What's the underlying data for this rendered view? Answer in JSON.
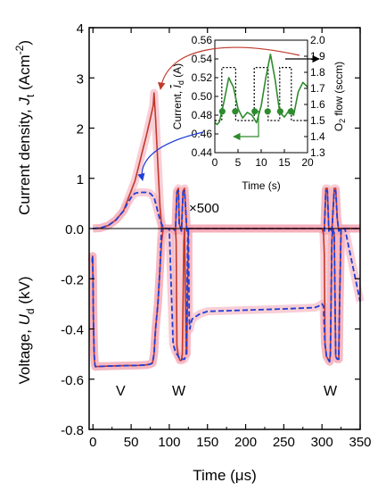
{
  "chart_data": [
    {
      "type": "line",
      "panel": "top",
      "ylabel": "Current density, J_t (Acm^-2)",
      "ylabel_parts": {
        "main": "Current density, ",
        "sym": "J",
        "sub": "t",
        "unit": " (Acm",
        "sup": "-2",
        "close": ")"
      },
      "xlim": [
        -5,
        350
      ],
      "ylim": [
        0,
        4
      ],
      "yticks": [
        "0.0",
        "1",
        "2",
        "3",
        "4"
      ],
      "annotation": "×500",
      "colors": {
        "solid": "#c0392b",
        "dashed": "#1f3fd6",
        "highlight": "#f4a6b4",
        "dots": "#2e8b2e"
      },
      "series": [
        {
          "style": "solid",
          "x": [
            0,
            10,
            20,
            30,
            40,
            45,
            50,
            55,
            60,
            65,
            70,
            73,
            76,
            79,
            80,
            82,
            84,
            86,
            88,
            90,
            95,
            100,
            105,
            108,
            110,
            112,
            113,
            116,
            118,
            120,
            123,
            125,
            130,
            150,
            200,
            250,
            300,
            303,
            305,
            307,
            309,
            311,
            313,
            316,
            318,
            320,
            322,
            325,
            330,
            350
          ],
          "y": [
            0,
            0.01,
            0.06,
            0.17,
            0.35,
            0.55,
            0.75,
            0.95,
            1.25,
            1.55,
            1.85,
            2.05,
            2.25,
            2.45,
            2.7,
            2.2,
            1.6,
            1.0,
            0.4,
            0.02,
            0,
            0,
            0,
            -0.05,
            0.75,
            0.8,
            0.1,
            -0.05,
            0.75,
            0.8,
            -0.05,
            0,
            0,
            0,
            0,
            0,
            0,
            -0.05,
            0.8,
            0.8,
            -0.05,
            0,
            -0.05,
            0.8,
            0.8,
            0.2,
            -0.05,
            0,
            0,
            0
          ]
        },
        {
          "style": "dashed",
          "x": [
            0,
            10,
            20,
            30,
            40,
            45,
            50,
            55,
            60,
            65,
            70,
            75,
            80,
            83,
            86,
            89,
            92,
            95,
            100,
            105,
            108,
            110,
            112,
            113,
            116,
            118,
            120,
            123,
            125,
            130,
            150,
            200,
            250,
            300,
            303,
            305,
            307,
            309,
            311,
            313,
            316,
            318,
            320,
            322,
            325,
            330,
            350
          ],
          "y": [
            0,
            0.01,
            0.06,
            0.17,
            0.35,
            0.5,
            0.62,
            0.7,
            0.72,
            0.72,
            0.72,
            0.7,
            0.62,
            0.45,
            0.28,
            0.12,
            0.03,
            0,
            0,
            0,
            -0.05,
            0.72,
            0.75,
            0.1,
            -0.05,
            0.72,
            0.75,
            -0.05,
            0,
            0,
            0,
            0,
            0,
            0,
            -0.05,
            0.75,
            0.75,
            -0.05,
            0,
            -0.05,
            0.75,
            0.75,
            0.2,
            -0.05,
            0,
            0,
            0
          ]
        }
      ]
    },
    {
      "type": "line",
      "panel": "bottom",
      "xlabel": "Time (μs)",
      "ylabel": "Voltage, U_d (kV)",
      "ylabel_parts": {
        "main": "Voltage, ",
        "sym": "U",
        "sub": "d",
        "unit": " (kV)"
      },
      "xlim": [
        -5,
        350
      ],
      "ylim": [
        -0.8,
        0
      ],
      "xticks": [
        "0",
        "50",
        "100",
        "150",
        "200",
        "250",
        "300",
        "350"
      ],
      "yticks": [
        "-0.8",
        "-0.6",
        "-0.4",
        "-0.2",
        "0.0"
      ],
      "annotations": [
        {
          "text": "V",
          "x": 37
        },
        {
          "text": "W",
          "x": 98
        },
        {
          "text": "W",
          "x": 294
        }
      ],
      "series": [
        {
          "style": "solid",
          "x": [
            -2,
            -1,
            -0.5,
            0,
            0.5,
            1.5,
            2.5,
            3,
            10,
            20,
            40,
            60,
            70,
            75,
            78,
            80,
            82,
            85,
            88,
            90,
            92,
            95,
            100,
            108,
            109,
            110,
            112,
            114,
            116,
            117,
            118,
            119,
            120,
            122,
            123,
            125,
            130,
            150,
            200,
            250,
            300,
            302,
            303,
            304,
            306,
            308,
            310,
            311,
            313,
            314,
            316,
            318,
            320,
            322,
            323,
            325,
            330,
            350
          ],
          "y": [
            -0.13,
            -0.13,
            -0.11,
            -0.2,
            -0.35,
            -0.5,
            -0.54,
            -0.55,
            -0.549,
            -0.548,
            -0.546,
            -0.545,
            -0.543,
            -0.54,
            -0.535,
            -0.5,
            -0.4,
            -0.3,
            -0.15,
            -0.05,
            0,
            0,
            0,
            0,
            -0.05,
            -0.47,
            -0.51,
            -0.525,
            -0.525,
            -0.5,
            -0.3,
            -0.05,
            0,
            -0.47,
            -0.5,
            0,
            0,
            0,
            0,
            0,
            0,
            -0.02,
            -0.1,
            -0.46,
            -0.51,
            -0.52,
            -0.53,
            -0.5,
            -0.05,
            0,
            -0.02,
            -0.51,
            -0.52,
            -0.52,
            -0.3,
            0,
            0,
            0
          ]
        },
        {
          "style": "dashed",
          "x": [
            -2,
            -1,
            -0.5,
            0,
            0.5,
            1.5,
            2.5,
            3,
            10,
            20,
            40,
            60,
            70,
            75,
            78,
            80,
            82,
            85,
            88,
            89,
            90,
            92,
            95,
            100,
            105,
            108,
            110,
            112,
            114,
            116,
            118,
            120,
            122,
            123,
            124,
            125,
            126,
            127,
            128,
            130,
            140,
            150,
            200,
            250,
            290,
            295,
            300,
            302,
            303,
            304,
            306,
            308,
            310,
            311,
            313,
            314,
            316,
            318,
            320,
            322,
            323,
            325,
            330,
            350
          ],
          "y": [
            -0.13,
            -0.13,
            -0.11,
            -0.2,
            -0.35,
            -0.5,
            -0.54,
            -0.55,
            -0.549,
            -0.548,
            -0.546,
            -0.545,
            -0.543,
            -0.54,
            -0.535,
            -0.5,
            -0.4,
            -0.3,
            -0.15,
            -0.05,
            0,
            0,
            0,
            0,
            -0.46,
            -0.49,
            -0.5,
            -0.51,
            -0.52,
            -0.52,
            -0.52,
            -0.52,
            -0.5,
            -0.3,
            -0.05,
            0,
            -0.35,
            -0.4,
            -0.38,
            -0.36,
            -0.34,
            -0.33,
            -0.325,
            -0.32,
            -0.315,
            -0.31,
            -0.3,
            -0.31,
            -0.4,
            -0.46,
            -0.51,
            -0.52,
            -0.53,
            -0.5,
            -0.05,
            0,
            -0.02,
            -0.51,
            -0.52,
            -0.52,
            -0.3,
            0,
            0,
            -0.29
          ]
        }
      ]
    },
    {
      "type": "line",
      "panel": "inset",
      "xlabel": "Time (s)",
      "ylabel": "Current, Ī_d (A)",
      "ylabel_parts": {
        "main": "Current, ",
        "sym": "I",
        "sub": "d",
        "unit": " (A)"
      },
      "y2label": "O2 flow (sccm)",
      "y2label_parts": {
        "main": "O",
        "sub": "2",
        "rest": " flow (sccm)"
      },
      "xlim": [
        0,
        20
      ],
      "ylim": [
        0.44,
        0.56
      ],
      "y2lim": [
        1.3,
        2.0
      ],
      "xticks": [
        "0",
        "5",
        "10",
        "15",
        "20"
      ],
      "yticks": [
        "0.44",
        "0.46",
        "0.48",
        "0.50",
        "0.52",
        "0.54",
        "0.56"
      ],
      "y2ticks": [
        "1.3",
        "1.4",
        "1.5",
        "1.6",
        "1.7",
        "1.8",
        "1.9",
        "2.0"
      ],
      "series": [
        {
          "name": "current",
          "style": "solid",
          "x": [
            0,
            0.5,
            1,
            2,
            3,
            4,
            5,
            6,
            7,
            8,
            9,
            10,
            11,
            12,
            13,
            14,
            15,
            16,
            17,
            18,
            19,
            20
          ],
          "y": [
            0.472,
            0.47,
            0.473,
            0.495,
            0.52,
            0.51,
            0.487,
            0.477,
            0.483,
            0.48,
            0.472,
            0.49,
            0.52,
            0.545,
            0.518,
            0.483,
            0.478,
            0.485,
            0.48,
            0.505,
            0.515,
            0.51
          ]
        },
        {
          "name": "O2 flow",
          "style": "dotted",
          "x": [
            0,
            1.5,
            1.5,
            4.5,
            4.5,
            8.5,
            8.5,
            11.5,
            11.5,
            14,
            14,
            16.5,
            16.5,
            20
          ],
          "y": [
            1.5,
            1.5,
            1.83,
            1.83,
            1.5,
            1.5,
            1.83,
            1.83,
            1.5,
            1.5,
            1.83,
            1.83,
            1.5,
            1.5
          ]
        },
        {
          "name": "markers",
          "style": "markers",
          "x": [
            1.6,
            4.4,
            8.6,
            11.4,
            14.1,
            16.4
          ],
          "y": [
            0.484,
            0.484,
            0.484,
            0.484,
            0.484,
            0.484
          ]
        }
      ]
    }
  ]
}
